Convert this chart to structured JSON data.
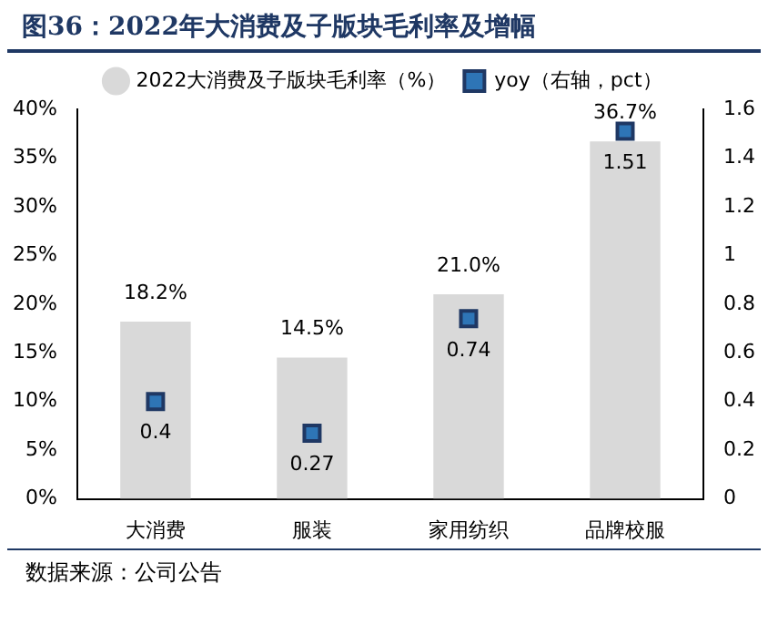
{
  "chart_data": {
    "type": "bar",
    "title": "图36：2022年大消费及子版块毛利率及增幅",
    "categories": [
      "大消费",
      "服装",
      "家用纺织",
      "品牌校服"
    ],
    "series": [
      {
        "name": "2022大消费及子版块毛利率（%）",
        "color": "#d9d9d9",
        "values": [
          18.2,
          14.5,
          21.0,
          36.7
        ],
        "value_labels": [
          "18.2%",
          "14.5%",
          "21.0%",
          "36.7%"
        ]
      },
      {
        "name": "yoy（右轴，pct）",
        "type": "scatter",
        "axis": "y2",
        "color": "#2e75b6",
        "marker": "square",
        "values": [
          0.4,
          0.27,
          0.74,
          1.51
        ],
        "value_labels": [
          "0.4",
          "0.27",
          "0.74",
          "1.51"
        ]
      }
    ],
    "ylim": [
      0,
      40
    ],
    "yticks": [
      {
        "value": 0,
        "label": "0%"
      },
      {
        "value": 5,
        "label": "5%"
      },
      {
        "value": 10,
        "label": "10%"
      },
      {
        "value": 15,
        "label": "15%"
      },
      {
        "value": 20,
        "label": "20%"
      },
      {
        "value": 25,
        "label": "25%"
      },
      {
        "value": 30,
        "label": "30%"
      },
      {
        "value": 35,
        "label": "35%"
      },
      {
        "value": 40,
        "label": "40%"
      }
    ],
    "y2lim": [
      0,
      1.6
    ],
    "y2ticks": [
      0,
      0.2,
      0.4,
      0.6,
      0.8,
      1,
      1.2,
      1.4,
      1.6
    ],
    "legend": "top",
    "grid": false,
    "annotations": [
      "数据来源：公司公告"
    ]
  }
}
